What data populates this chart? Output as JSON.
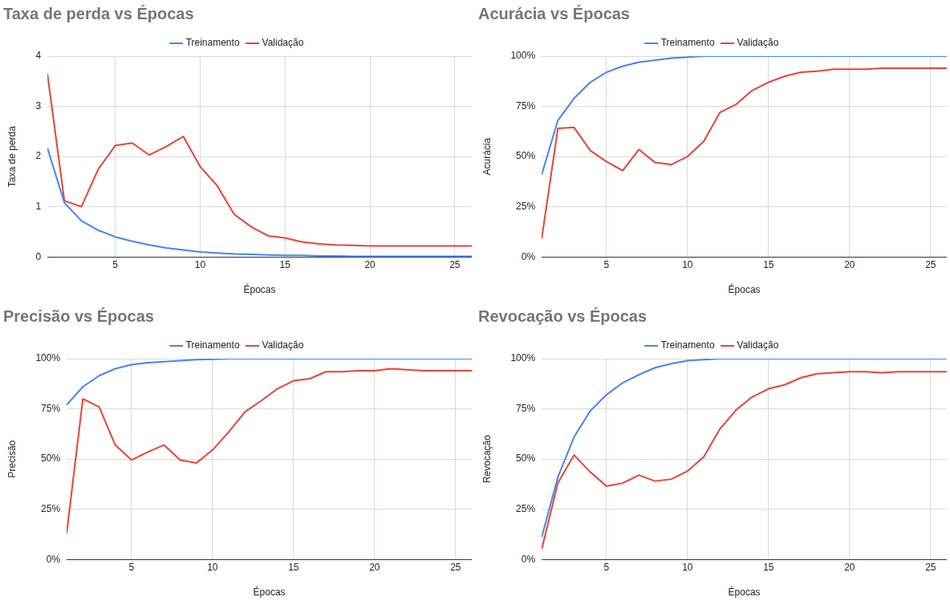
{
  "chart_data": [
    {
      "type": "line",
      "title": "Taxa de perda vs Épocas",
      "xlabel": "Épocas",
      "ylabel": "Taxa de perda",
      "x": [
        1,
        2,
        3,
        4,
        5,
        6,
        7,
        8,
        9,
        10,
        11,
        12,
        13,
        14,
        15,
        16,
        17,
        18,
        19,
        20,
        21,
        22,
        23,
        24,
        25,
        26
      ],
      "xlim": [
        1,
        26
      ],
      "xticks": [
        5,
        10,
        15,
        20,
        25
      ],
      "ylim": [
        0,
        4
      ],
      "yticks": [
        0,
        1,
        2,
        3,
        4
      ],
      "grid": true,
      "legend": "top",
      "series": [
        {
          "name": "Treinamento",
          "color": "#4285f4",
          "values": [
            2.17,
            1.08,
            0.72,
            0.53,
            0.4,
            0.31,
            0.24,
            0.18,
            0.14,
            0.1,
            0.08,
            0.06,
            0.05,
            0.04,
            0.03,
            0.03,
            0.02,
            0.02,
            0.01,
            0.01,
            0.01,
            0.01,
            0.01,
            0.01,
            0.01,
            0.01
          ]
        },
        {
          "name": "Validação",
          "color": "#ea4335",
          "values": [
            3.65,
            1.12,
            1.0,
            1.75,
            2.22,
            2.27,
            2.03,
            2.2,
            2.4,
            1.8,
            1.42,
            0.85,
            0.6,
            0.42,
            0.38,
            0.3,
            0.26,
            0.24,
            0.23,
            0.22,
            0.22,
            0.22,
            0.22,
            0.22,
            0.22,
            0.22
          ]
        }
      ]
    },
    {
      "type": "line",
      "title": "Acurácia vs Épocas",
      "xlabel": "Épocas",
      "ylabel": "Acurácia",
      "x": [
        1,
        2,
        3,
        4,
        5,
        6,
        7,
        8,
        9,
        10,
        11,
        12,
        13,
        14,
        15,
        16,
        17,
        18,
        19,
        20,
        21,
        22,
        23,
        24,
        25,
        26
      ],
      "xlim": [
        1,
        26
      ],
      "xticks": [
        5,
        10,
        15,
        20,
        25
      ],
      "ylim": [
        0,
        100
      ],
      "yticks": [
        {
          "value": 0,
          "label": "0%"
        },
        {
          "value": 25,
          "label": "25%"
        },
        {
          "value": 50,
          "label": "50%"
        },
        {
          "value": 75,
          "label": "75%"
        },
        {
          "value": 100,
          "label": "100%"
        }
      ],
      "grid": true,
      "legend": "top",
      "series": [
        {
          "name": "Treinamento",
          "color": "#4285f4",
          "values": [
            41,
            68,
            79,
            87,
            92,
            95,
            97,
            98,
            99,
            99.5,
            100,
            100,
            100,
            100,
            100,
            100,
            100,
            100,
            100,
            100,
            100,
            100,
            100,
            100,
            100,
            100
          ]
        },
        {
          "name": "Validação",
          "color": "#ea4335",
          "values": [
            9,
            64,
            64.5,
            53,
            47.5,
            43,
            53.5,
            47,
            46,
            50,
            57.5,
            72,
            76,
            83,
            87,
            90,
            92,
            92.5,
            93.5,
            93.5,
            93.5,
            94,
            94,
            94,
            94,
            94
          ]
        }
      ]
    },
    {
      "type": "line",
      "title": "Precisão vs Épocas",
      "xlabel": "Épocas",
      "ylabel": "Precisão",
      "x": [
        1,
        2,
        3,
        4,
        5,
        6,
        7,
        8,
        9,
        10,
        11,
        12,
        13,
        14,
        15,
        16,
        17,
        18,
        19,
        20,
        21,
        22,
        23,
        24,
        25,
        26
      ],
      "xlim": [
        1,
        26
      ],
      "xticks": [
        5,
        10,
        15,
        20,
        25
      ],
      "ylim": [
        0,
        100
      ],
      "yticks": [
        {
          "value": 0,
          "label": "0%"
        },
        {
          "value": 25,
          "label": "25%"
        },
        {
          "value": 50,
          "label": "50%"
        },
        {
          "value": 75,
          "label": "75%"
        },
        {
          "value": 100,
          "label": "100%"
        }
      ],
      "grid": true,
      "legend": "top",
      "series": [
        {
          "name": "Treinamento",
          "color": "#4285f4",
          "values": [
            77,
            86,
            91.5,
            95,
            97,
            98,
            98.5,
            99,
            99.5,
            99.7,
            100,
            100,
            100,
            100,
            100,
            100,
            100,
            100,
            100,
            100,
            100,
            100,
            100,
            100,
            100,
            100
          ]
        },
        {
          "name": "Validação",
          "color": "#ea4335",
          "values": [
            13,
            80,
            76,
            57,
            49.5,
            53.5,
            57,
            49.5,
            48,
            54.5,
            63.5,
            73.5,
            79,
            85,
            89,
            90,
            93.5,
            93.5,
            94,
            94,
            95,
            94.5,
            94,
            94,
            94,
            94
          ]
        }
      ]
    },
    {
      "type": "line",
      "title": "Revocação vs Épocas",
      "xlabel": "Épocas",
      "ylabel": "Revocação",
      "x": [
        1,
        2,
        3,
        4,
        5,
        6,
        7,
        8,
        9,
        10,
        11,
        12,
        13,
        14,
        15,
        16,
        17,
        18,
        19,
        20,
        21,
        22,
        23,
        24,
        25,
        26
      ],
      "xlim": [
        1,
        26
      ],
      "xticks": [
        5,
        10,
        15,
        20,
        25
      ],
      "ylim": [
        0,
        100
      ],
      "yticks": [
        {
          "value": 0,
          "label": "0%"
        },
        {
          "value": 25,
          "label": "25%"
        },
        {
          "value": 50,
          "label": "50%"
        },
        {
          "value": 75,
          "label": "75%"
        },
        {
          "value": 100,
          "label": "100%"
        }
      ],
      "grid": true,
      "legend": "top",
      "series": [
        {
          "name": "Treinamento",
          "color": "#4285f4",
          "values": [
            11,
            41,
            61,
            74,
            82,
            88,
            92,
            95.5,
            97.5,
            99,
            99.5,
            100,
            100,
            100,
            100,
            100,
            100,
            100,
            100,
            100,
            100,
            100,
            100,
            100,
            100,
            100
          ]
        },
        {
          "name": "Validação",
          "color": "#ea4335",
          "values": [
            5,
            38,
            52,
            43.5,
            36.5,
            38,
            42,
            39,
            40,
            44,
            51,
            65,
            74.5,
            81,
            85,
            87,
            90.5,
            92.5,
            93,
            93.5,
            93.5,
            93,
            93.5,
            93.5,
            93.5,
            93.5
          ]
        }
      ]
    }
  ]
}
